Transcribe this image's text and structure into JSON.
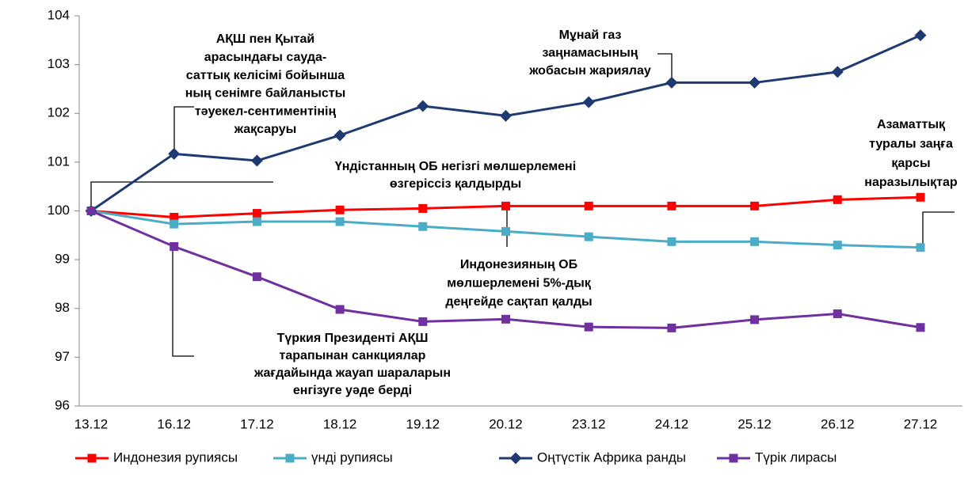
{
  "chart_data": {
    "type": "line",
    "categories": [
      "13.12",
      "16.12",
      "17.12",
      "18.12",
      "19.12",
      "20.12",
      "23.12",
      "24.12",
      "25.12",
      "26.12",
      "27.12"
    ],
    "series": [
      {
        "name": "Индонезия рупиясы",
        "color": "#ff0000",
        "marker": "square",
        "values": [
          100,
          99.87,
          99.95,
          100.02,
          100.05,
          100.1,
          100.1,
          100.1,
          100.1,
          100.23,
          100.28
        ]
      },
      {
        "name": "үнді рупиясы",
        "color": "#4bacc6",
        "marker": "square",
        "values": [
          100,
          99.73,
          99.78,
          99.78,
          99.68,
          99.58,
          99.47,
          99.37,
          99.37,
          99.3,
          99.25
        ]
      },
      {
        "name": "Оңтүстік Африка ранды",
        "color": "#1f3a70",
        "marker": "diamond",
        "values": [
          100,
          101.17,
          101.03,
          101.55,
          102.15,
          101.95,
          102.23,
          102.63,
          102.63,
          102.85,
          103.6
        ]
      },
      {
        "name": "Түрік лирасы",
        "color": "#7030a0",
        "marker": "square",
        "values": [
          100,
          99.27,
          98.65,
          97.98,
          97.73,
          97.78,
          97.62,
          97.6,
          97.77,
          97.89,
          97.61
        ]
      }
    ],
    "ylim": [
      96,
      104
    ],
    "yticks": [
      96,
      97,
      98,
      99,
      100,
      101,
      102,
      103,
      104
    ],
    "annotations": [
      {
        "lines": [
          "АҚШ пен Қытай",
          "арасындағы сауда-",
          "саттық келісімі бойынша",
          "ның сенімге байланысты",
          "тәуекел-сентиментінің",
          "жақсаруы"
        ]
      },
      {
        "lines": [
          "Мұнай газ",
          "заңнамасының",
          "жобасын жариялау"
        ]
      },
      {
        "lines": [
          "Азаматтық",
          "туралы заңға",
          "қарсы",
          "наразылықтар"
        ]
      },
      {
        "lines": [
          "Үндістанның ОБ  негізгі мөлшерлемені",
          "өзгеріссіз қалдырды"
        ]
      },
      {
        "lines": [
          "Индонезияның ОБ",
          "мөлшерлемені 5%-дық",
          "деңгейде сақтап қалды"
        ]
      },
      {
        "lines": [
          "Түркия Президенті АҚШ",
          "тарапынан санкциялар",
          "жағдайында жауап шараларын",
          "енгізуге уәде берді"
        ]
      }
    ]
  }
}
